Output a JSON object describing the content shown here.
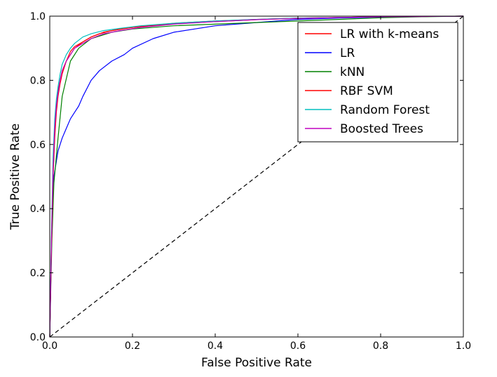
{
  "chart_data": {
    "type": "line",
    "title": "",
    "xlabel": "False Positive Rate",
    "ylabel": "True Positive Rate",
    "xlim": [
      0.0,
      1.0
    ],
    "ylim": [
      0.0,
      1.0
    ],
    "xticks": [
      "0.0",
      "0.2",
      "0.4",
      "0.6",
      "0.8",
      "1.0"
    ],
    "yticks": [
      "0.0",
      "0.2",
      "0.4",
      "0.6",
      "0.8",
      "1.0"
    ],
    "grid": false,
    "legend_position": "upper right",
    "reference_line": {
      "style": "dashed",
      "color": "#000000",
      "x": [
        0.0,
        1.0
      ],
      "y": [
        0.0,
        1.0
      ]
    },
    "series": [
      {
        "name": "LR with k-means",
        "color": "#ff0000",
        "x": [
          0,
          0.004,
          0.008,
          0.012,
          0.016,
          0.02,
          0.025,
          0.03,
          0.04,
          0.05,
          0.06,
          0.08,
          0.1,
          0.12,
          0.15,
          0.2,
          0.25,
          0.3,
          0.4,
          0.5,
          0.6,
          0.7,
          0.8,
          0.9,
          1.0
        ],
        "y": [
          0,
          0.3,
          0.5,
          0.62,
          0.7,
          0.75,
          0.79,
          0.82,
          0.86,
          0.88,
          0.9,
          0.92,
          0.935,
          0.945,
          0.955,
          0.965,
          0.972,
          0.978,
          0.985,
          0.99,
          0.994,
          0.996,
          0.998,
          0.999,
          1.0
        ]
      },
      {
        "name": "LR",
        "color": "#0000ff",
        "x": [
          0,
          0.005,
          0.01,
          0.02,
          0.03,
          0.04,
          0.05,
          0.06,
          0.07,
          0.08,
          0.1,
          0.12,
          0.15,
          0.18,
          0.2,
          0.25,
          0.3,
          0.35,
          0.4,
          0.5,
          0.6,
          0.7,
          0.8,
          0.9,
          1.0
        ],
        "y": [
          0,
          0.35,
          0.5,
          0.58,
          0.62,
          0.65,
          0.68,
          0.7,
          0.72,
          0.75,
          0.8,
          0.83,
          0.86,
          0.88,
          0.9,
          0.93,
          0.95,
          0.96,
          0.97,
          0.98,
          0.99,
          0.994,
          0.997,
          0.999,
          1.0
        ]
      },
      {
        "name": "kNN",
        "color": "#008000",
        "x": [
          0,
          0.005,
          0.01,
          0.02,
          0.03,
          0.05,
          0.07,
          0.1,
          0.15,
          0.2,
          0.3,
          0.4,
          0.5,
          0.6,
          0.7,
          0.8,
          0.9,
          1.0
        ],
        "y": [
          0,
          0.3,
          0.48,
          0.62,
          0.75,
          0.86,
          0.9,
          0.93,
          0.95,
          0.96,
          0.97,
          0.975,
          0.98,
          0.985,
          0.99,
          0.995,
          0.998,
          1.0
        ]
      },
      {
        "name": "RBF SVM",
        "color": "#ff0000",
        "x": [
          0,
          0.004,
          0.008,
          0.012,
          0.016,
          0.02,
          0.025,
          0.03,
          0.04,
          0.05,
          0.06,
          0.08,
          0.1,
          0.13,
          0.17,
          0.22,
          0.3,
          0.4,
          0.5,
          0.6,
          0.7,
          0.8,
          0.9,
          1.0
        ],
        "y": [
          0,
          0.28,
          0.5,
          0.64,
          0.72,
          0.77,
          0.8,
          0.83,
          0.86,
          0.89,
          0.905,
          0.92,
          0.935,
          0.95,
          0.96,
          0.968,
          0.976,
          0.983,
          0.989,
          0.993,
          0.996,
          0.998,
          0.999,
          1.0
        ]
      },
      {
        "name": "Random Forest",
        "color": "#00bfbf",
        "x": [
          0,
          0.004,
          0.008,
          0.012,
          0.016,
          0.02,
          0.025,
          0.03,
          0.04,
          0.05,
          0.06,
          0.08,
          0.1,
          0.13,
          0.17,
          0.22,
          0.3,
          0.4,
          0.5,
          0.6,
          0.7,
          0.8,
          0.9,
          1.0
        ],
        "y": [
          0,
          0.32,
          0.56,
          0.68,
          0.74,
          0.78,
          0.82,
          0.85,
          0.88,
          0.9,
          0.915,
          0.935,
          0.945,
          0.955,
          0.962,
          0.97,
          0.978,
          0.985,
          0.99,
          0.994,
          0.996,
          0.998,
          0.999,
          1.0
        ]
      },
      {
        "name": "Boosted Trees",
        "color": "#bf00bf",
        "x": [
          0,
          0.004,
          0.008,
          0.012,
          0.016,
          0.02,
          0.025,
          0.03,
          0.04,
          0.05,
          0.06,
          0.08,
          0.1,
          0.13,
          0.17,
          0.22,
          0.3,
          0.4,
          0.5,
          0.6,
          0.7,
          0.8,
          0.9,
          1.0
        ],
        "y": [
          0,
          0.3,
          0.52,
          0.65,
          0.72,
          0.76,
          0.8,
          0.83,
          0.86,
          0.88,
          0.9,
          0.915,
          0.93,
          0.945,
          0.955,
          0.965,
          0.975,
          0.983,
          0.989,
          0.993,
          0.996,
          0.998,
          0.999,
          1.0
        ]
      }
    ]
  }
}
